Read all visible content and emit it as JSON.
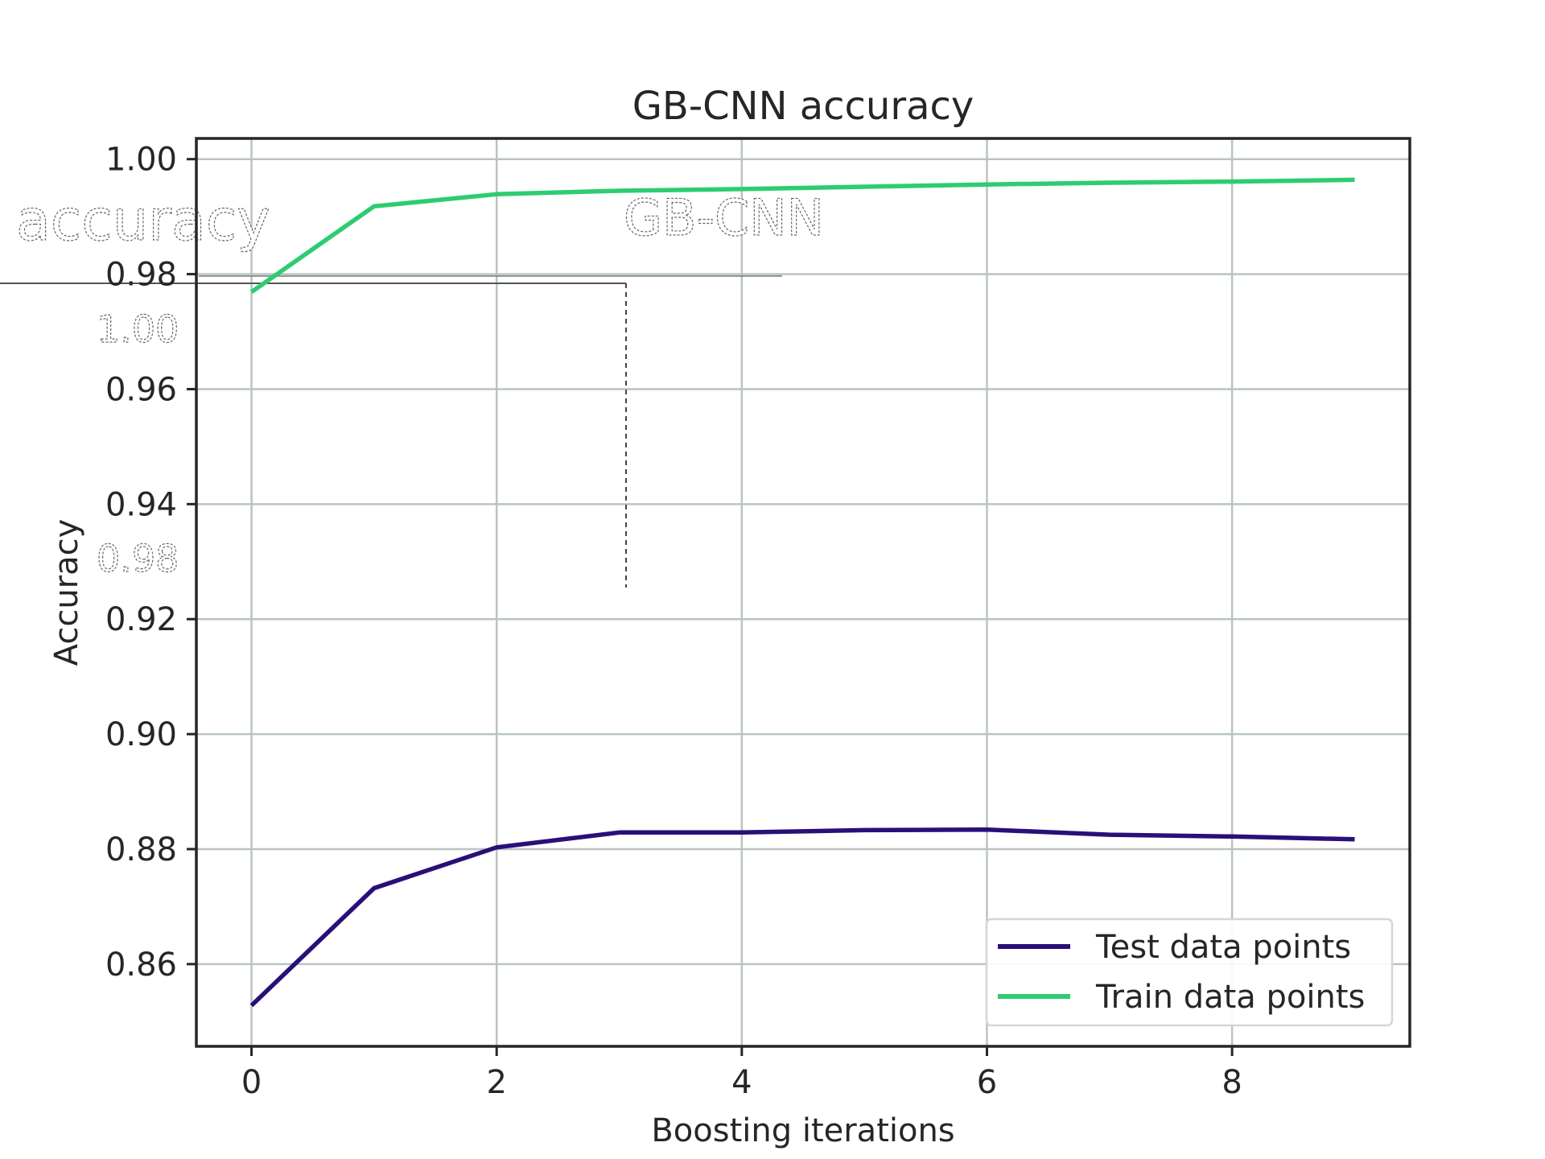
{
  "chart_data": {
    "type": "line",
    "title": "GB-CNN accuracy",
    "xlabel": "Boosting iterations",
    "ylabel": "Accuracy",
    "x": [
      0,
      1,
      2,
      3,
      4,
      5,
      6,
      7,
      8,
      9
    ],
    "xticks": [
      0,
      2,
      4,
      6,
      8
    ],
    "yticks": [
      0.86,
      0.88,
      0.9,
      0.92,
      0.94,
      0.96,
      0.98,
      1.0
    ],
    "xlim": [
      -0.45,
      9.45
    ],
    "ylim": [
      0.8457,
      1.0036
    ],
    "grid": true,
    "legend_position": "lower right",
    "series": [
      {
        "name": "Test data points",
        "color": "#2a0f7a",
        "values": [
          0.8528,
          0.8732,
          0.8803,
          0.8829,
          0.8829,
          0.8833,
          0.8834,
          0.8825,
          0.8822,
          0.8817
        ]
      },
      {
        "name": "Train data points",
        "color": "#2ecc71",
        "values": [
          0.9769,
          0.9918,
          0.9939,
          0.9945,
          0.9948,
          0.9952,
          0.9956,
          0.9959,
          0.9961,
          0.9964
        ]
      }
    ],
    "overlay_text": {
      "title_fragment": "GB-CNN",
      "ylabel_fragment": "accuracy",
      "tick_a": "1.00",
      "tick_b": "0.98"
    }
  }
}
